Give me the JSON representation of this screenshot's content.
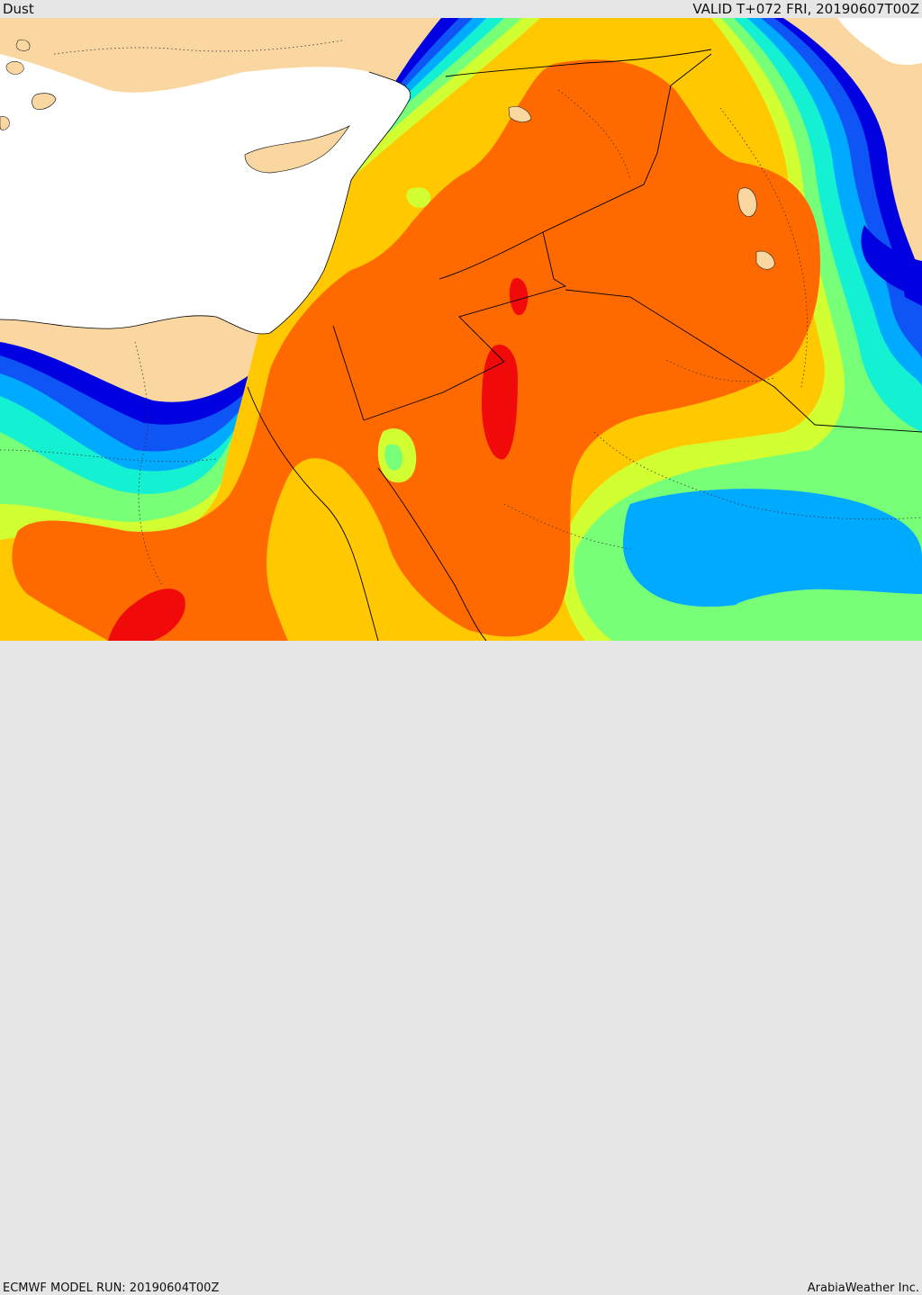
{
  "header": {
    "product": "Dust",
    "valid": "VALID T+072 FRI, 20190607T00Z"
  },
  "footer": {
    "model_run": "ECMWF MODEL RUN: 20190604T00Z",
    "credit": "ArabiaWeather Inc."
  },
  "palette": {
    "land": "#fad7a0",
    "sea": "#ffffff",
    "level_1": "#0000e0",
    "level_2": "#0f55f5",
    "level_3": "#00aaff",
    "level_4": "#14f0d2",
    "level_5": "#78ff78",
    "level_6": "#d2ff32",
    "level_7": "#ffc800",
    "level_8": "#ff6a00",
    "level_9": "#f00a0a",
    "borders": "#000000"
  }
}
